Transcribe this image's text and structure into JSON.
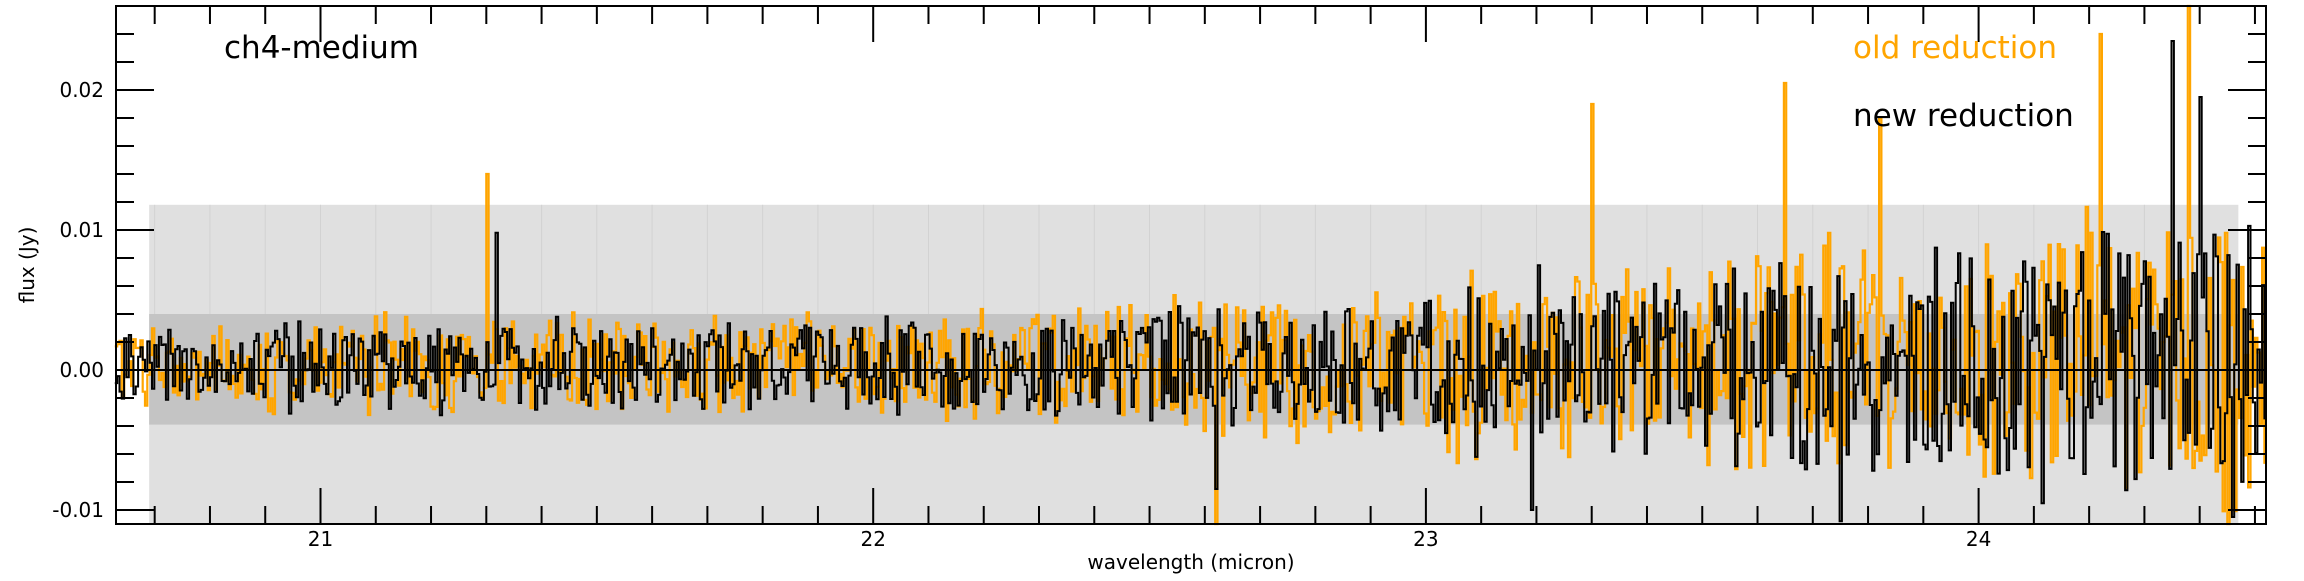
{
  "chart_data": {
    "type": "line",
    "drawstyle": "steps-mid",
    "xlabel": "wavelength (micron)",
    "ylabel": "flux (Jy)",
    "xlim": [
      20.63,
      24.52
    ],
    "ylim": [
      -0.011,
      0.026
    ],
    "x_ticks": [
      21,
      22,
      23,
      24
    ],
    "x_tick_labels": [
      "21",
      "22",
      "23",
      "24"
    ],
    "y_ticks": [
      -0.01,
      0.0,
      0.01,
      0.02
    ],
    "y_tick_labels": [
      "-0.01",
      "0.00",
      "0.01",
      "0.02"
    ],
    "annotations": {
      "channel": "ch4-medium",
      "old": "old reduction",
      "new": "new reduction"
    },
    "reference_line_y": 0.0,
    "bands": [
      {
        "name": "outer band",
        "x_range": [
          20.69,
          24.47
        ],
        "y_range": [
          -0.011,
          0.0118
        ],
        "color": "#e0e0e0"
      },
      {
        "name": "inner band",
        "x_range": [
          20.69,
          24.47
        ],
        "y_range": [
          -0.0039,
          0.004
        ],
        "color": "#c4c4c4"
      }
    ],
    "series": [
      {
        "name": "old reduction",
        "color": "#ffa500",
        "segments": [
          {
            "x_range": [
              20.63,
              20.9
            ],
            "amp": 0.0025
          },
          {
            "x_range": [
              20.9,
              21.4
            ],
            "amp": 0.003
          },
          {
            "x_range": [
              21.4,
              22.0
            ],
            "amp": 0.0032
          },
          {
            "x_range": [
              22.0,
              22.5
            ],
            "amp": 0.0035
          },
          {
            "x_range": [
              22.5,
              23.0
            ],
            "amp": 0.0045
          },
          {
            "x_range": [
              23.0,
              23.5
            ],
            "amp": 0.006
          },
          {
            "x_range": [
              23.5,
              24.0
            ],
            "amp": 0.0075
          },
          {
            "x_range": [
              24.0,
              24.52
            ],
            "amp": 0.009
          }
        ],
        "peaks": [
          {
            "x": 21.3,
            "y": 0.014
          },
          {
            "x": 22.62,
            "y": -0.011
          },
          {
            "x": 23.3,
            "y": 0.019
          },
          {
            "x": 23.65,
            "y": 0.0205
          },
          {
            "x": 24.22,
            "y": 0.024
          },
          {
            "x": 24.38,
            "y": 0.0262
          },
          {
            "x": 24.45,
            "y": -0.011
          },
          {
            "x": 23.82,
            "y": 0.018
          }
        ]
      },
      {
        "name": "new reduction",
        "color": "#000000",
        "segments": [
          {
            "x_range": [
              20.63,
              20.9
            ],
            "amp": 0.0022
          },
          {
            "x_range": [
              20.9,
              21.4
            ],
            "amp": 0.0028
          },
          {
            "x_range": [
              21.4,
              22.0
            ],
            "amp": 0.003
          },
          {
            "x_range": [
              22.0,
              22.5
            ],
            "amp": 0.0032
          },
          {
            "x_range": [
              22.5,
              23.0
            ],
            "amp": 0.004
          },
          {
            "x_range": [
              23.0,
              23.5
            ],
            "amp": 0.0055
          },
          {
            "x_range": [
              23.5,
              24.0
            ],
            "amp": 0.0065
          },
          {
            "x_range": [
              24.0,
              24.52
            ],
            "amp": 0.008
          }
        ],
        "peaks": [
          {
            "x": 21.32,
            "y": 0.0098
          },
          {
            "x": 22.62,
            "y": -0.0085
          },
          {
            "x": 23.19,
            "y": -0.01
          },
          {
            "x": 23.75,
            "y": -0.0108
          },
          {
            "x": 24.35,
            "y": 0.0235
          },
          {
            "x": 24.4,
            "y": 0.0195
          },
          {
            "x": 24.46,
            "y": -0.0105
          }
        ]
      }
    ]
  }
}
